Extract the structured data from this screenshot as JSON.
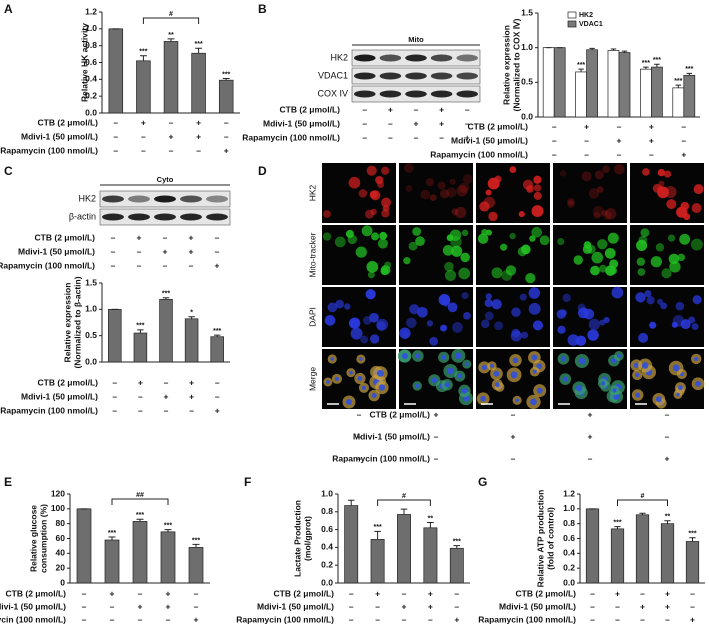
{
  "chart_data": [
    {
      "label": "A",
      "type": "bar",
      "ylabel": "Relative HK activity",
      "color": "#6e6e6e",
      "values": [
        1,
        0.62,
        0.85,
        0.71,
        0.39
      ],
      "errors": [
        0,
        0.06,
        0.03,
        0.06,
        0.02
      ],
      "significance": [
        null,
        "***",
        "**",
        "***",
        "***"
      ],
      "bracket": {
        "label": "#",
        "between": [
          1,
          3
        ]
      },
      "ylim": [
        0,
        1.2
      ],
      "yticks": [
        {
          "value": 0,
          "label": "0.0"
        },
        {
          "value": 0.2,
          "label": "0.2"
        },
        {
          "value": 0.4,
          "label": "0.4"
        },
        {
          "value": 0.6,
          "label": "0.6"
        },
        {
          "value": 0.8,
          "label": "0.8"
        },
        {
          "value": 1,
          "label": "1.0"
        },
        {
          "value": 1.2,
          "label": "1.2"
        }
      ]
    },
    {
      "type": "bar",
      "ylabel": [
        "Relative expression",
        "(Normalized to COX Ⅳ)"
      ],
      "legend": "upper left",
      "series": [
        {
          "name": "HK2",
          "color": "#ffffff",
          "values": [
            1,
            0.65,
            0.96,
            0.69,
            0.42
          ],
          "errors": [
            0,
            0.04,
            0.02,
            0.03,
            0.04
          ],
          "significance": [
            null,
            "***",
            null,
            "***",
            "***"
          ]
        },
        {
          "name": "VDAC1",
          "color": "#7a7a7a",
          "values": [
            1,
            0.97,
            0.93,
            0.72,
            0.6
          ],
          "errors": [
            0,
            0.02,
            0.02,
            0.04,
            0.03
          ],
          "significance": [
            null,
            null,
            null,
            "***",
            "***"
          ]
        }
      ],
      "ylim": [
        0,
        1.5
      ],
      "yticks": [
        {
          "value": 0,
          "label": "0.0"
        },
        {
          "value": 0.5,
          "label": "0.5"
        },
        {
          "value": 1,
          "label": "1.0"
        },
        {
          "value": 1.5,
          "label": "1.5"
        }
      ]
    },
    {
      "type": "bar",
      "ylabel": [
        "Relative expression",
        "(Normalized to β-actin)"
      ],
      "color": "#6e6e6e",
      "values": [
        1,
        0.55,
        1.19,
        0.82,
        0.48
      ],
      "errors": [
        0,
        0.06,
        0.03,
        0.04,
        0.03
      ],
      "significance": [
        null,
        "***",
        "***",
        "*",
        "***"
      ],
      "ylim": [
        0,
        1.5
      ],
      "yticks": [
        {
          "value": 0,
          "label": "0.0"
        },
        {
          "value": 0.5,
          "label": "0.5"
        },
        {
          "value": 1,
          "label": "1.0"
        },
        {
          "value": 1.5,
          "label": "1.5"
        }
      ]
    },
    {
      "label": "E",
      "type": "bar",
      "ylabel": [
        "Relative glucose",
        "consumption (%)"
      ],
      "color": "#6e6e6e",
      "values": [
        100,
        58,
        83,
        69,
        48
      ],
      "errors": [
        0,
        4,
        3,
        3,
        4
      ],
      "significance": [
        null,
        "***",
        "***",
        "***",
        "***"
      ],
      "bracket": {
        "label": "##",
        "between": [
          1,
          3
        ]
      },
      "ylim": [
        0,
        120
      ],
      "yticks": [
        0,
        20,
        40,
        60,
        80,
        100,
        120
      ]
    },
    {
      "label": "F",
      "type": "bar",
      "ylabel": [
        "Lactate Production",
        "(mol/gprot)"
      ],
      "color": "#6e6e6e",
      "values": [
        0.87,
        0.49,
        0.77,
        0.62,
        0.39
      ],
      "errors": [
        0.06,
        0.09,
        0.06,
        0.06,
        0.03
      ],
      "significance": [
        null,
        "***",
        null,
        "**",
        "***"
      ],
      "bracket": {
        "label": "#",
        "between": [
          1,
          3
        ]
      },
      "ylim": [
        0,
        1
      ],
      "yticks": [
        {
          "value": 0,
          "label": "0.0"
        },
        {
          "value": 0.2,
          "label": "0.2"
        },
        {
          "value": 0.4,
          "label": "0.4"
        },
        {
          "value": 0.6,
          "label": "0.6"
        },
        {
          "value": 0.8,
          "label": "0.8"
        },
        {
          "value": 1,
          "label": "1.0"
        }
      ]
    },
    {
      "label": "G",
      "type": "bar",
      "ylabel": [
        "Relative ATP production",
        "(fold of control)"
      ],
      "color": "#6e6e6e",
      "values": [
        1,
        0.73,
        0.92,
        0.8,
        0.56
      ],
      "errors": [
        0,
        0.03,
        0.02,
        0.04,
        0.05
      ],
      "significance": [
        null,
        "***",
        null,
        "**",
        "***"
      ],
      "bracket": {
        "label": "#",
        "between": [
          1,
          3
        ]
      },
      "ylim": [
        0,
        1.2
      ],
      "yticks": [
        {
          "value": 0,
          "label": "0.0"
        },
        {
          "value": 0.2,
          "label": "0.2"
        },
        {
          "value": 0.4,
          "label": "0.4"
        },
        {
          "value": 0.6,
          "label": "0.6"
        },
        {
          "value": 0.8,
          "label": "0.8"
        },
        {
          "value": 1,
          "label": "1.0"
        },
        {
          "value": 1.2,
          "label": "1.2"
        }
      ]
    }
  ],
  "blots": [
    {
      "label": "B",
      "header": "Mito",
      "rows": [
        "HK2",
        "VDAC1",
        "COX IV"
      ]
    },
    {
      "label": "C",
      "header": "Cyto",
      "rows": [
        "HK2",
        "β-actin"
      ]
    }
  ],
  "images": {
    "label": "D",
    "rows": [
      "HK2",
      "Mito-tracker",
      "DAPI",
      "Merge"
    ]
  },
  "treatments": [
    {
      "label": "CTB (2 μmol/L)",
      "signs": [
        "–",
        "+",
        "–",
        "+",
        "–"
      ]
    },
    {
      "label": "Mdivi-1 (50 μmol/L)",
      "signs": [
        "–",
        "–",
        "+",
        "+",
        "–"
      ]
    },
    {
      "label": "Rapamycin (100 nmol/L)",
      "signs": [
        "–",
        "–",
        "–",
        "–",
        "+"
      ]
    }
  ]
}
